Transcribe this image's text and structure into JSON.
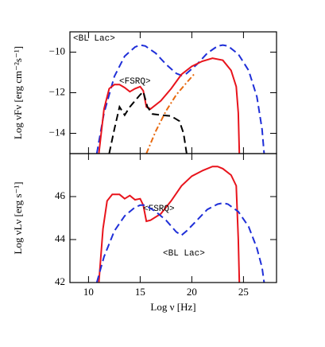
{
  "chart_data": [
    {
      "type": "line",
      "ylabel": "Log νFν [erg cm⁻²s⁻¹]",
      "xlim": [
        8.2,
        28.2
      ],
      "ylim": [
        -15,
        -9
      ],
      "yticks": [
        {
          "value": -10,
          "label": "−10"
        },
        {
          "value": -12,
          "label": "−12"
        },
        {
          "value": -14,
          "label": "−14"
        }
      ],
      "series": [
        {
          "name": "<BL Lac>",
          "color": "#1f2fd8",
          "dash": "dashed",
          "x": [
            10.8,
            11.5,
            12.5,
            13.5,
            14.5,
            15,
            15.5,
            16.5,
            17.5,
            18.5,
            19,
            19.5,
            20.5,
            21.5,
            22.5,
            23,
            23.5,
            24.5,
            25.5,
            26.3,
            26.8,
            27
          ],
          "values": [
            -15,
            -13,
            -11.2,
            -10.2,
            -9.75,
            -9.65,
            -9.7,
            -10.05,
            -10.6,
            -11.05,
            -11.15,
            -11.05,
            -10.6,
            -10.05,
            -9.7,
            -9.65,
            -9.7,
            -10.1,
            -10.9,
            -12.2,
            -13.8,
            -15
          ]
        },
        {
          "name": "<FSRQ>",
          "color": "#e8141c",
          "dash": "solid",
          "x": [
            11,
            11.5,
            12,
            12.5,
            13,
            13.5,
            14,
            14.5,
            15,
            15.3,
            15.6,
            16,
            17,
            18,
            19,
            20,
            21,
            22,
            23,
            23.8,
            24.3,
            24.5,
            24.6
          ],
          "values": [
            -15,
            -12.8,
            -11.8,
            -11.6,
            -11.6,
            -11.75,
            -11.95,
            -11.8,
            -11.7,
            -11.9,
            -12.7,
            -12.8,
            -12.4,
            -11.8,
            -11.1,
            -10.7,
            -10.45,
            -10.3,
            -10.4,
            -10.9,
            -11.7,
            -13,
            -15
          ]
        },
        {
          "color": "#000000",
          "dash": "dashed",
          "x": [
            12,
            12.5,
            13,
            13.5,
            14,
            14.5,
            15,
            15.3,
            15.7,
            16.2,
            17,
            18,
            18.8,
            19.2,
            19.5
          ],
          "values": [
            -15,
            -13.8,
            -12.7,
            -13.1,
            -12.7,
            -12.4,
            -12.1,
            -11.95,
            -12.7,
            -13.05,
            -13.1,
            -13.15,
            -13.4,
            -14,
            -15
          ]
        },
        {
          "color": "#e86a10",
          "dash": "dashdot",
          "x": [
            15.6,
            16.5,
            17.5,
            18.5,
            19.5,
            20.2
          ],
          "values": [
            -15,
            -13.9,
            -12.9,
            -12.1,
            -11.5,
            -11.1
          ]
        }
      ]
    },
    {
      "type": "line",
      "xlabel": "Log ν [Hz]",
      "ylabel": "Log νLν [erg s⁻¹]",
      "xlim": [
        8.2,
        28.2
      ],
      "ylim": [
        42,
        48
      ],
      "xticks": [
        10,
        15,
        20,
        25
      ],
      "yticks": [
        42,
        44,
        46
      ],
      "series": [
        {
          "name": "<FSRQ>",
          "color": "#e8141c",
          "dash": "solid",
          "x": [
            11,
            11.4,
            11.8,
            12.3,
            13,
            13.5,
            14,
            14.5,
            15,
            15.3,
            15.6,
            16,
            17,
            18,
            19,
            20,
            21,
            22,
            22.5,
            23,
            23.8,
            24.3,
            24.5,
            24.6
          ],
          "values": [
            42,
            44.5,
            45.8,
            46.1,
            46.1,
            45.9,
            46.05,
            45.85,
            45.9,
            45.6,
            44.85,
            44.9,
            45.2,
            45.8,
            46.5,
            46.95,
            47.2,
            47.4,
            47.4,
            47.3,
            47.0,
            46.5,
            44,
            42
          ]
        },
        {
          "name": "<BL Lac>",
          "color": "#1f2fd8",
          "dash": "dashed",
          "x": [
            10.8,
            11.5,
            12.5,
            13.5,
            14.5,
            15,
            15.5,
            16.5,
            17.5,
            18.5,
            19,
            19.5,
            20.5,
            21.5,
            22.5,
            23,
            23.5,
            24.5,
            25.5,
            26.3,
            26.8,
            27
          ],
          "values": [
            42,
            43.2,
            44.4,
            45.1,
            45.5,
            45.6,
            45.6,
            45.3,
            44.9,
            44.35,
            44.2,
            44.4,
            44.9,
            45.4,
            45.65,
            45.7,
            45.65,
            45.3,
            44.6,
            43.6,
            42.7,
            42
          ]
        }
      ]
    }
  ]
}
